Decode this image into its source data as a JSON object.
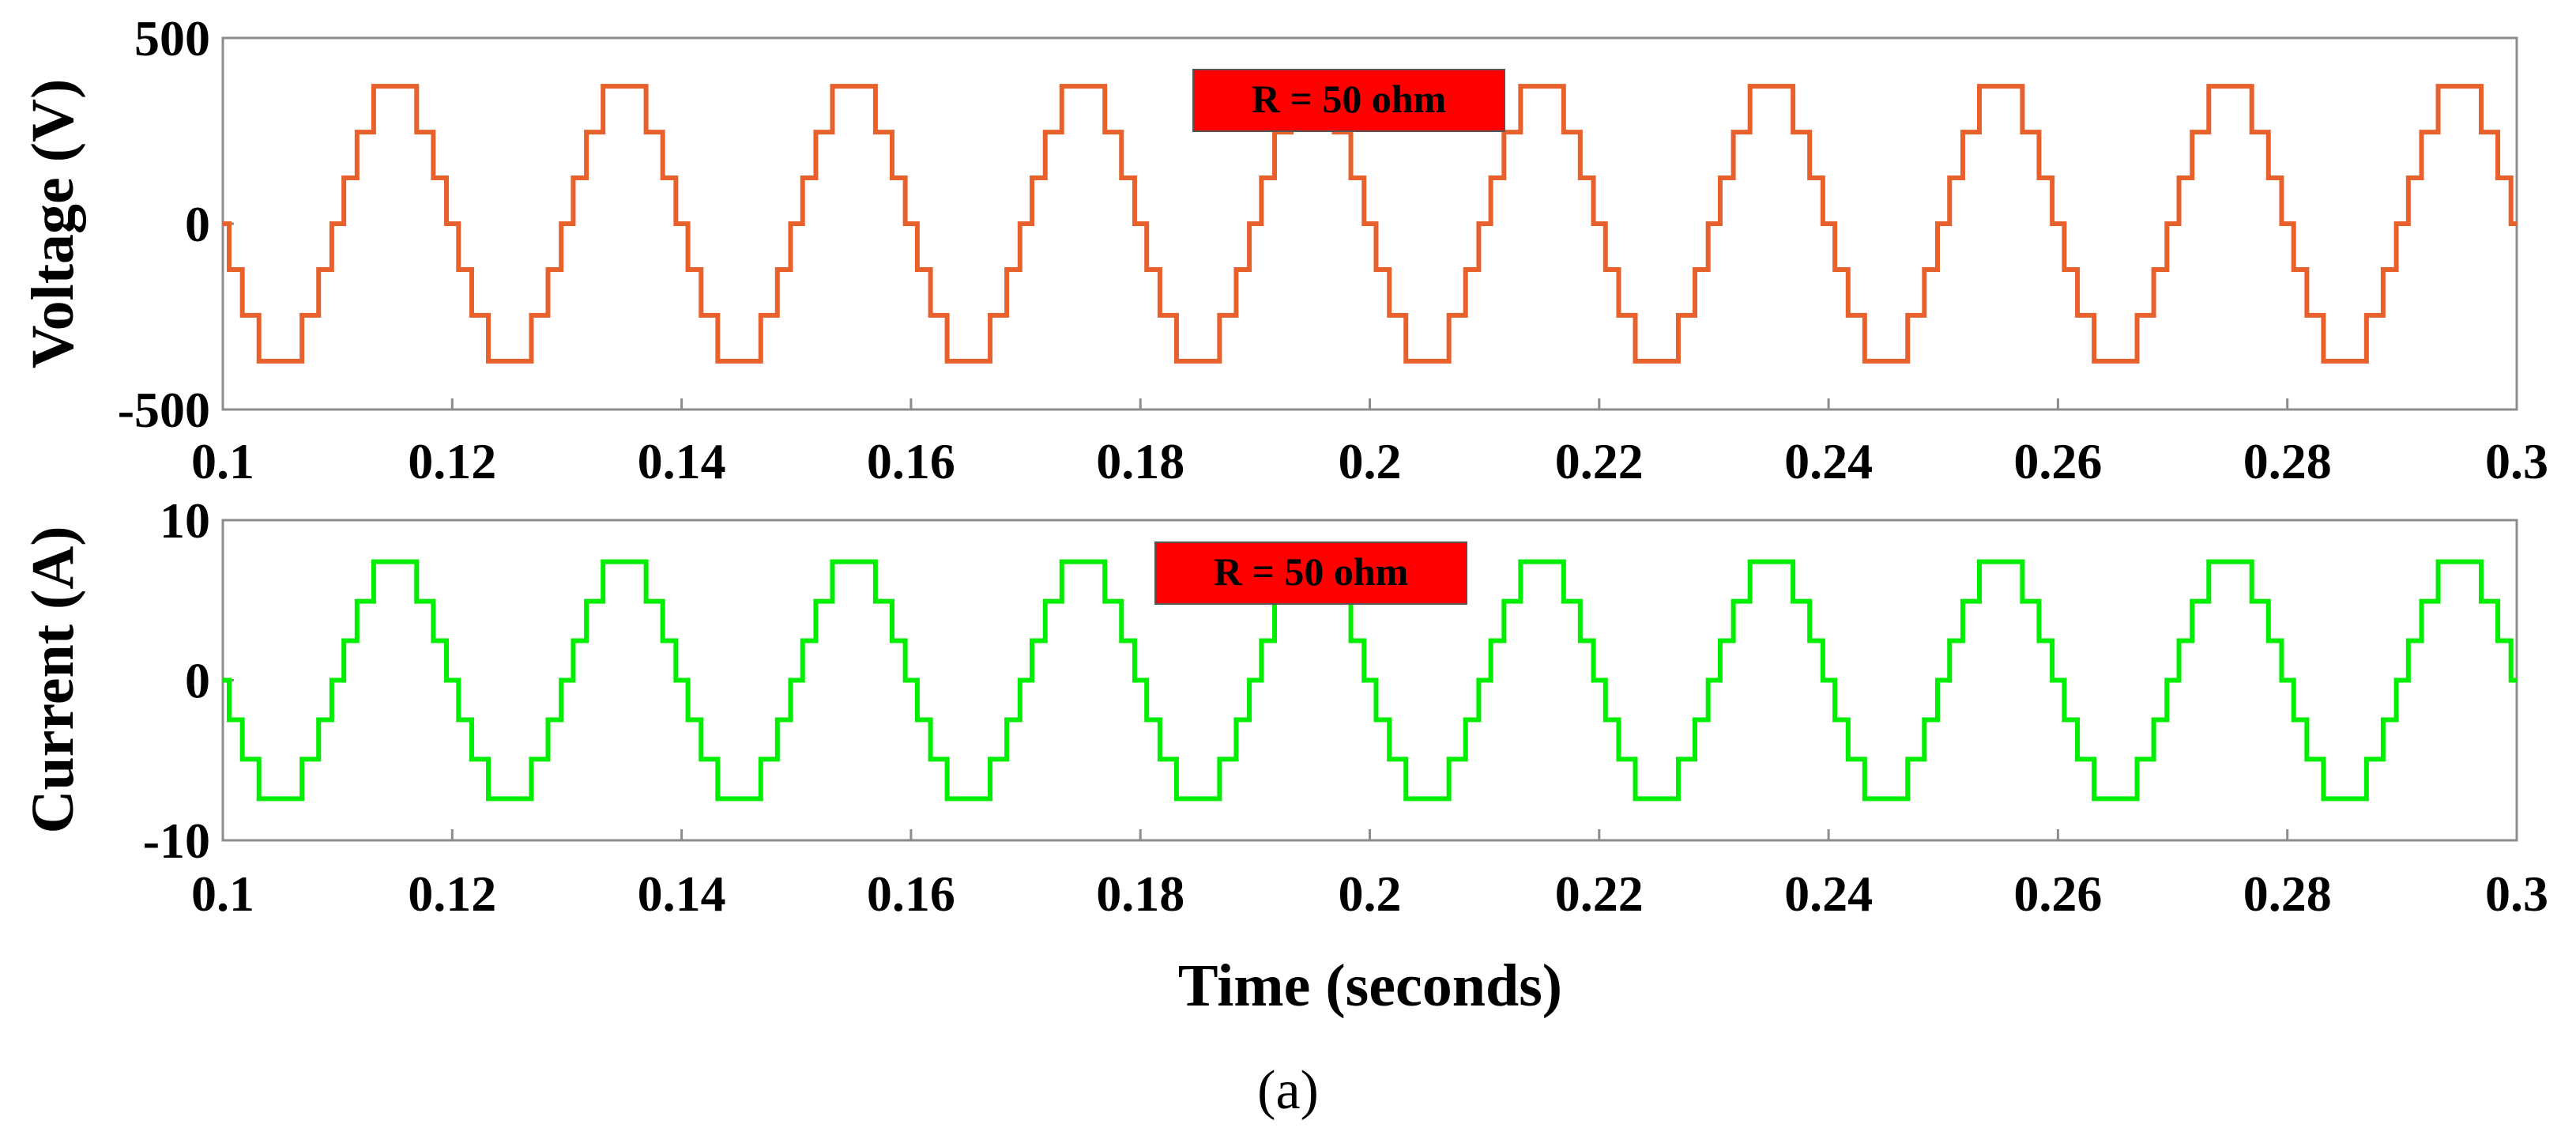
{
  "chart_data": [
    {
      "type": "line",
      "title": "",
      "xlabel": "",
      "ylabel": "Voltage (V)",
      "xlim": [
        0.1,
        0.3
      ],
      "ylim": [
        -500,
        500
      ],
      "xticks": [
        0.1,
        0.12,
        0.14,
        0.16,
        0.18,
        0.2,
        0.22,
        0.24,
        0.26,
        0.28,
        0.3
      ],
      "xtick_labels": [
        "0.1",
        "0.12",
        "0.14",
        "0.16",
        "0.18",
        "0.2",
        "0.22",
        "0.24",
        "0.26",
        "0.28",
        "0.3"
      ],
      "yticks": [
        -500,
        0,
        500
      ],
      "ytick_labels": [
        "-500",
        "0",
        "500"
      ],
      "grid": false,
      "series": [
        {
          "name": "Voltage",
          "color": "#E8602C",
          "waveform": "stepped multilevel sine",
          "frequency_hz": 50,
          "peak": 370,
          "levels": 7,
          "phase_start": "falling through zero at t = 0.1"
        }
      ],
      "annotation": {
        "text": "R = 50 ohm",
        "x": 0.197,
        "y": 310,
        "background": "#FF0000"
      }
    },
    {
      "type": "line",
      "title": "",
      "xlabel": "Time (seconds)",
      "ylabel": "Current (A)",
      "xlim": [
        0.1,
        0.3
      ],
      "ylim": [
        -10,
        10
      ],
      "xticks": [
        0.1,
        0.12,
        0.14,
        0.16,
        0.18,
        0.2,
        0.22,
        0.24,
        0.26,
        0.28,
        0.3
      ],
      "xtick_labels": [
        "0.1",
        "0.12",
        "0.14",
        "0.16",
        "0.18",
        "0.2",
        "0.22",
        "0.24",
        "0.26",
        "0.28",
        "0.3"
      ],
      "yticks": [
        -10,
        0,
        10
      ],
      "ytick_labels": [
        "-10",
        "0",
        "10"
      ],
      "grid": false,
      "series": [
        {
          "name": "Current",
          "color": "#00EE00",
          "waveform": "stepped multilevel sine",
          "frequency_hz": 50,
          "peak": 7.4,
          "levels": 7,
          "phase_start": "falling through zero at t = 0.1"
        }
      ],
      "annotation": {
        "text": "R = 50 ohm",
        "x": 0.194,
        "y": 6.8,
        "background": "#FF0000"
      }
    }
  ],
  "caption": "(a)"
}
